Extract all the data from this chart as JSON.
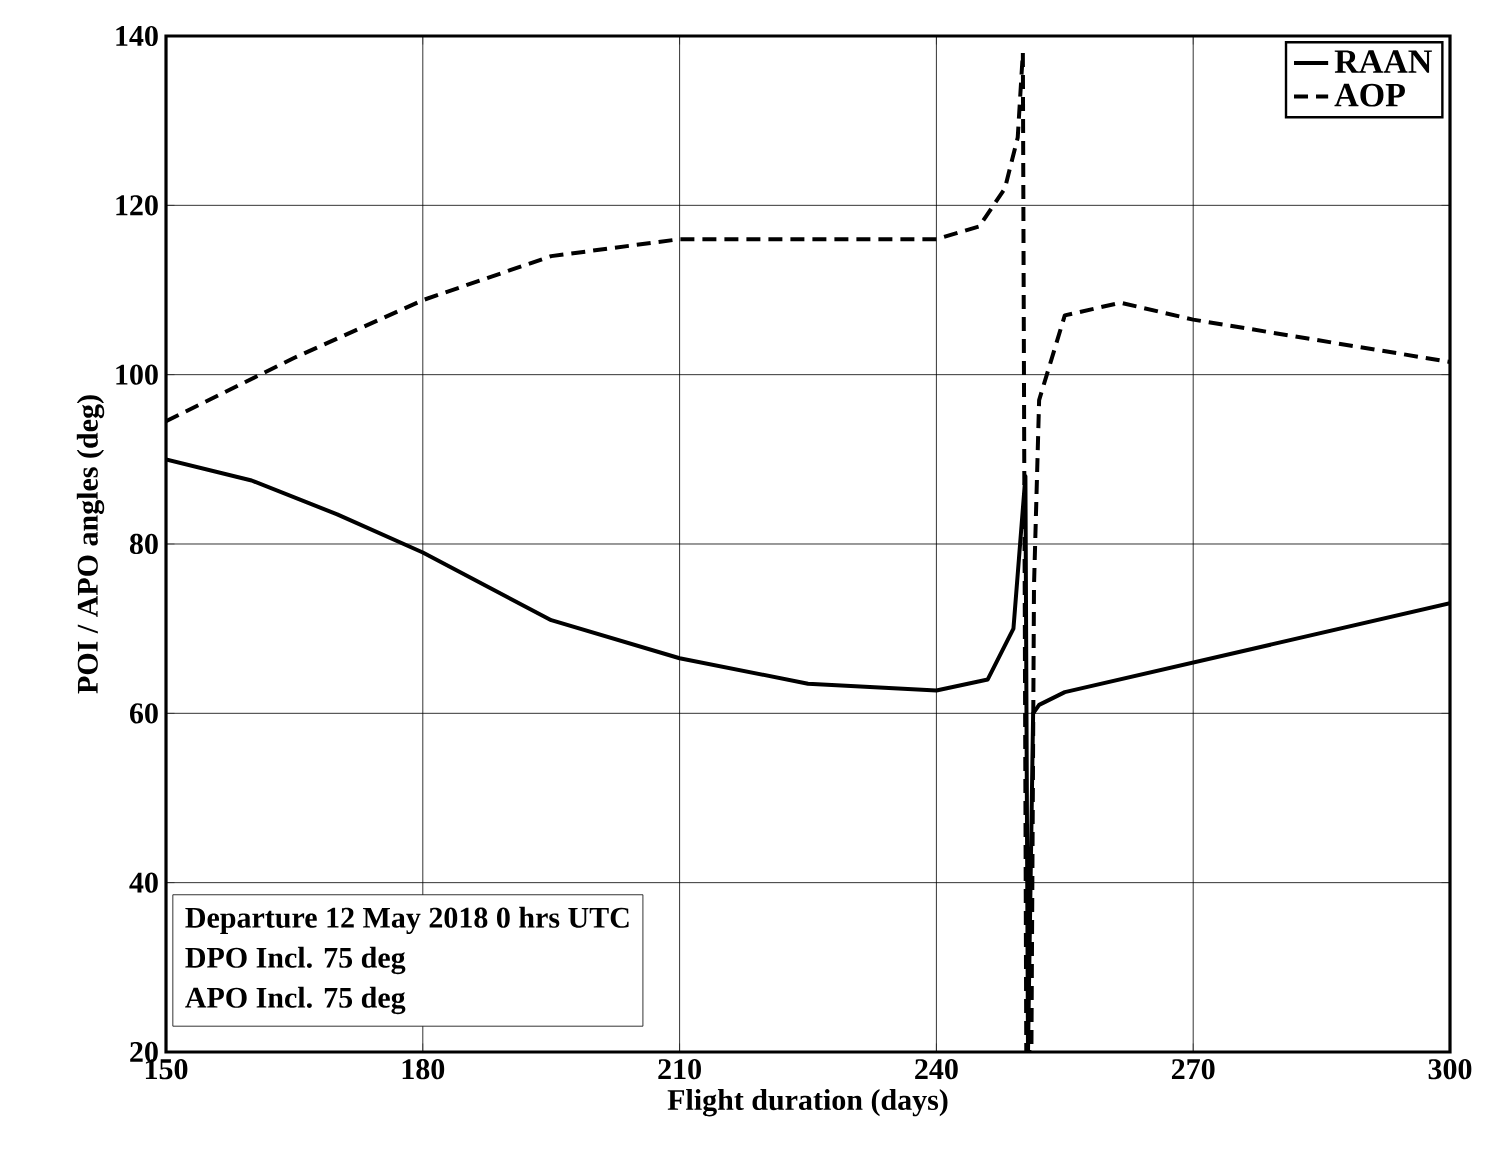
{
  "chart_data": {
    "type": "line",
    "xlabel": "Flight duration (days)",
    "ylabel": "POI / APO angles (deg)",
    "xlim": [
      150,
      300
    ],
    "ylim": [
      20,
      140
    ],
    "xticks": [
      150,
      180,
      210,
      240,
      270,
      300
    ],
    "yticks": [
      20,
      40,
      60,
      80,
      100,
      120,
      140
    ],
    "grid": true,
    "legend": "top right",
    "annotations": [
      "Departure 12 May 2018 0 hrs UTC",
      "DPO Incl. 75 deg",
      "APO Incl. 75 deg"
    ],
    "series": [
      {
        "name": "RAAN",
        "color": "#000000",
        "line_style": "solid",
        "x": [
          150,
          160,
          170,
          180,
          195,
          210,
          225,
          240,
          246,
          249,
          250.4,
          250.7,
          251.3,
          252,
          255,
          270,
          285,
          300
        ],
        "values": [
          90,
          87.5,
          83.5,
          79,
          71,
          66.5,
          63.5,
          62.7,
          64,
          70,
          88,
          20,
          60,
          61,
          62.5,
          66,
          69.5,
          73
        ]
      },
      {
        "name": "AOP",
        "color": "#000000",
        "line_style": "dashed",
        "x": [
          150,
          165,
          180,
          195,
          210,
          225,
          240,
          245,
          248,
          249.5,
          250.1,
          250.5,
          251.1,
          251.4,
          252,
          255,
          261.5,
          270,
          285,
          300
        ],
        "values": [
          94.5,
          102,
          108.8,
          114,
          116,
          116,
          116,
          117.5,
          122,
          128,
          138,
          20,
          20,
          75,
          97,
          107,
          108.5,
          106.5,
          104,
          101.5
        ]
      }
    ]
  }
}
